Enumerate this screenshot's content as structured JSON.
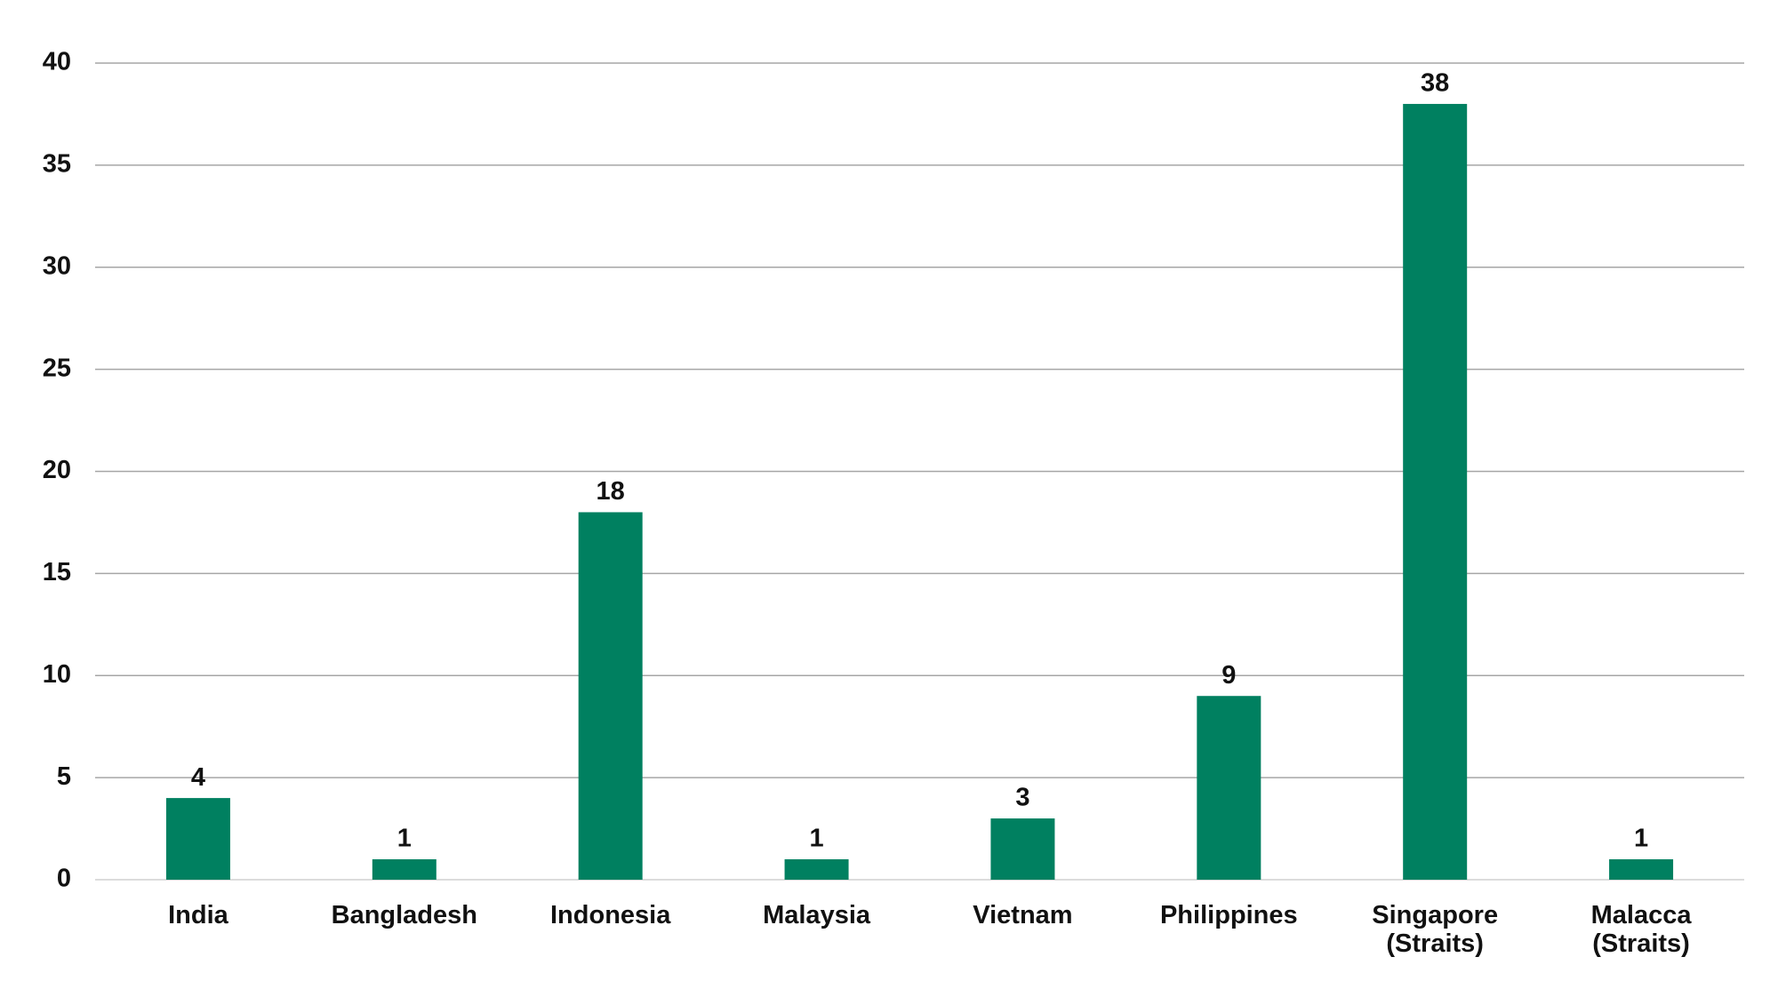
{
  "chart_data": {
    "type": "bar",
    "categories": [
      "India",
      "Bangladesh",
      "Indonesia",
      "Malaysia",
      "Vietnam",
      "Philippines",
      "Singapore (Straits)",
      "Malacca (Straits)"
    ],
    "values": [
      4,
      1,
      18,
      1,
      3,
      9,
      38,
      1
    ],
    "color": "#008060",
    "ylim": [
      0,
      40
    ],
    "yticks": [
      0,
      5,
      10,
      15,
      20,
      25,
      30,
      35,
      40
    ],
    "grid": true
  }
}
